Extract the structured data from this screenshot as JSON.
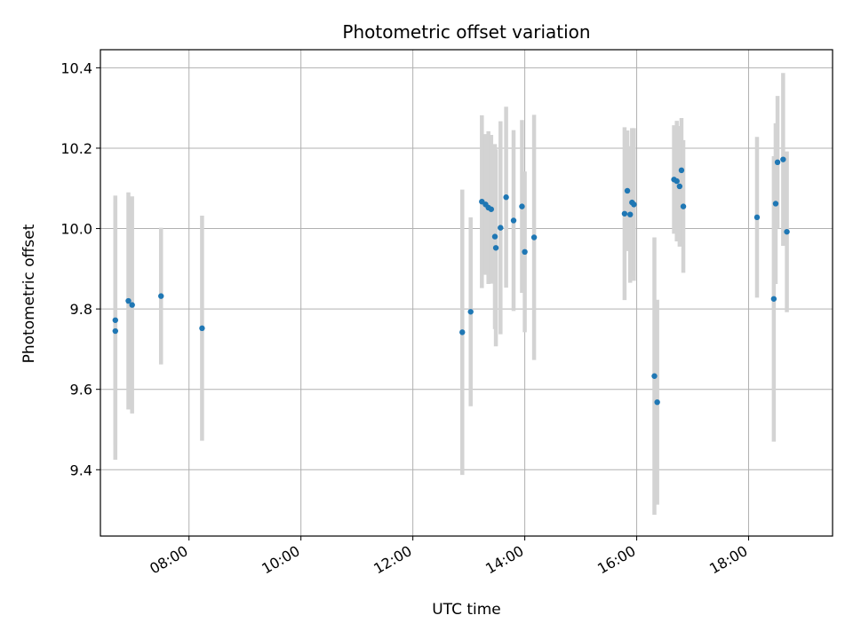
{
  "chart_data": {
    "type": "scatter",
    "title": "Photometric offset variation",
    "xlabel": "UTC time",
    "ylabel": "Photometric offset",
    "x_unit": "hour-of-day",
    "xlim": [
      "06:25",
      "19:30"
    ],
    "ylim": [
      9.235,
      10.445
    ],
    "x_ticks": [
      "08:00",
      "10:00",
      "12:00",
      "14:00",
      "16:00",
      "18:00"
    ],
    "y_ticks": [
      "9.4",
      "9.6",
      "9.8",
      "10.0",
      "10.2",
      "10.4"
    ],
    "y_tick_values": [
      9.4,
      9.6,
      9.8,
      10.0,
      10.2,
      10.4
    ],
    "grid": true,
    "legend": "none",
    "colors": {
      "point": "#1f77b4",
      "errorbar": "#d3d3d3",
      "grid": "#b0b0b0",
      "frame": "#000000"
    },
    "points": [
      {
        "x": "06:41",
        "y": 9.745,
        "err": 0.32
      },
      {
        "x": "06:41",
        "y": 9.772,
        "err": 0.31
      },
      {
        "x": "06:55",
        "y": 9.82,
        "err": 0.27
      },
      {
        "x": "06:59",
        "y": 9.81,
        "err": 0.27
      },
      {
        "x": "07:30",
        "y": 9.832,
        "err": 0.17
      },
      {
        "x": "08:14",
        "y": 9.752,
        "err": 0.28
      },
      {
        "x": "12:53",
        "y": 9.742,
        "err": 0.355
      },
      {
        "x": "13:02",
        "y": 9.793,
        "err": 0.235
      },
      {
        "x": "13:14",
        "y": 10.067,
        "err": 0.215
      },
      {
        "x": "13:18",
        "y": 10.06,
        "err": 0.175
      },
      {
        "x": "13:21",
        "y": 10.052,
        "err": 0.19
      },
      {
        "x": "13:24",
        "y": 10.048,
        "err": 0.185
      },
      {
        "x": "13:28",
        "y": 9.98,
        "err": 0.23
      },
      {
        "x": "13:29",
        "y": 9.952,
        "err": 0.245
      },
      {
        "x": "13:34",
        "y": 10.002,
        "err": 0.265
      },
      {
        "x": "13:40",
        "y": 10.078,
        "err": 0.225
      },
      {
        "x": "13:48",
        "y": 10.02,
        "err": 0.225
      },
      {
        "x": "13:57",
        "y": 10.055,
        "err": 0.215
      },
      {
        "x": "14:00",
        "y": 9.942,
        "err": 0.2
      },
      {
        "x": "14:10",
        "y": 9.978,
        "err": 0.305
      },
      {
        "x": "15:47",
        "y": 10.037,
        "err": 0.215
      },
      {
        "x": "15:50",
        "y": 10.094,
        "err": 0.15
      },
      {
        "x": "15:53",
        "y": 10.035,
        "err": 0.17
      },
      {
        "x": "15:55",
        "y": 10.065,
        "err": 0.185
      },
      {
        "x": "15:57",
        "y": 10.06,
        "err": 0.19
      },
      {
        "x": "16:19",
        "y": 9.633,
        "err": 0.345
      },
      {
        "x": "16:22",
        "y": 9.568,
        "err": 0.255
      },
      {
        "x": "16:40",
        "y": 10.122,
        "err": 0.135
      },
      {
        "x": "16:43",
        "y": 10.118,
        "err": 0.15
      },
      {
        "x": "16:46",
        "y": 10.105,
        "err": 0.15
      },
      {
        "x": "16:48",
        "y": 10.145,
        "err": 0.13
      },
      {
        "x": "16:50",
        "y": 10.055,
        "err": 0.165
      },
      {
        "x": "18:09",
        "y": 10.028,
        "err": 0.2
      },
      {
        "x": "18:27",
        "y": 9.825,
        "err": 0.355
      },
      {
        "x": "18:29",
        "y": 10.062,
        "err": 0.2
      },
      {
        "x": "18:31",
        "y": 10.165,
        "err": 0.165
      },
      {
        "x": "18:37",
        "y": 10.172,
        "err": 0.215
      },
      {
        "x": "18:41",
        "y": 9.992,
        "err": 0.2
      }
    ]
  }
}
